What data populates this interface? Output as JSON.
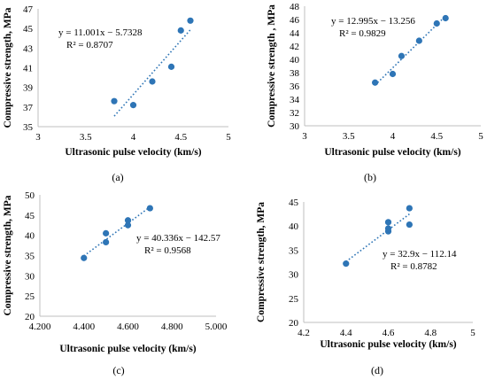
{
  "chart_data": [
    {
      "id": "a",
      "type": "scatter",
      "caption": "(a)",
      "xlabel": "Ultrasonic pulse velocity (km/s)",
      "ylabel": "Compressive strength, MPa",
      "xlim": [
        3,
        5
      ],
      "ylim": [
        35,
        47
      ],
      "xticks": [
        "3",
        "3.5",
        "4",
        "4.5",
        "5"
      ],
      "xtick_values": [
        3,
        3.5,
        4,
        4.5,
        5
      ],
      "yticks": [
        "35",
        "37",
        "39",
        "41",
        "43",
        "45",
        "47"
      ],
      "ytick_values": [
        35,
        37,
        39,
        41,
        43,
        45,
        47
      ],
      "points": [
        [
          3.8,
          37.6
        ],
        [
          4.0,
          37.2
        ],
        [
          4.2,
          39.6
        ],
        [
          4.4,
          41.1
        ],
        [
          4.5,
          44.8
        ],
        [
          4.6,
          45.8
        ]
      ],
      "trendline": {
        "slope": 11.001,
        "intercept": -5.7328,
        "x_range": [
          3.8,
          4.6
        ]
      },
      "equation": "y = 11.001x − 5.7328",
      "r2": "R² = 0.8707",
      "grid": false,
      "color": "#2e75b6"
    },
    {
      "id": "b",
      "type": "scatter",
      "caption": "(b)",
      "xlabel": "Ultrasonic pulse velocity (km/s)",
      "ylabel": "Compressive strength , MPa",
      "xlim": [
        3,
        5
      ],
      "ylim": [
        30,
        48
      ],
      "xticks": [
        "3",
        "3.5",
        "4",
        "4.5",
        "5"
      ],
      "xtick_values": [
        3,
        3.5,
        4,
        4.5,
        5
      ],
      "yticks": [
        "30",
        "32",
        "34",
        "36",
        "38",
        "40",
        "42",
        "44",
        "46",
        "48"
      ],
      "ytick_values": [
        30,
        32,
        34,
        36,
        38,
        40,
        42,
        44,
        46,
        48
      ],
      "points": [
        [
          3.8,
          36.5
        ],
        [
          4.0,
          37.8
        ],
        [
          4.1,
          40.5
        ],
        [
          4.3,
          42.8
        ],
        [
          4.5,
          45.4
        ],
        [
          4.6,
          46.2
        ]
      ],
      "trendline": {
        "slope": 12.995,
        "intercept": -13.256,
        "x_range": [
          3.8,
          4.6
        ]
      },
      "equation": "y = 12.995x − 13.256",
      "r2": "R² = 0.9829",
      "grid": false,
      "color": "#2e75b6"
    },
    {
      "id": "c",
      "type": "scatter",
      "caption": "(c)",
      "xlabel": "Ultrasonic pulse velocity (km/s)",
      "ylabel": "Compressive strength, MPa",
      "xlim": [
        4.2,
        5.0
      ],
      "ylim": [
        20,
        50
      ],
      "xticks": [
        "4.200",
        "4.400",
        "4.600",
        "4.800",
        "5.000"
      ],
      "xtick_values": [
        4.2,
        4.4,
        4.6,
        4.8,
        5.0
      ],
      "yticks": [
        "20",
        "25",
        "30",
        "35",
        "40",
        "45",
        "50"
      ],
      "ytick_values": [
        20,
        25,
        30,
        35,
        40,
        45,
        50
      ],
      "points": [
        [
          4.4,
          34.4
        ],
        [
          4.5,
          38.3
        ],
        [
          4.5,
          40.5
        ],
        [
          4.6,
          42.5
        ],
        [
          4.6,
          43.7
        ],
        [
          4.7,
          46.7
        ]
      ],
      "trendline": {
        "slope": 40.336,
        "intercept": -142.57,
        "x_range": [
          4.4,
          4.7
        ]
      },
      "equation": "y = 40.336x − 142.57",
      "r2": "R² = 0.9568",
      "grid": false,
      "color": "#2e75b6"
    },
    {
      "id": "d",
      "type": "scatter",
      "caption": "(d)",
      "xlabel": "Ultrasonic pulse velocity (km/s)",
      "ylabel": "Compressive strength, MPa",
      "xlim": [
        4.2,
        5.0
      ],
      "ylim": [
        20,
        45
      ],
      "xticks": [
        "4.2",
        "4.4",
        "4.6",
        "4.8",
        "5"
      ],
      "xtick_values": [
        4.2,
        4.4,
        4.6,
        4.8,
        5.0
      ],
      "yticks": [
        "20",
        "25",
        "30",
        "35",
        "40",
        "45"
      ],
      "ytick_values": [
        20,
        25,
        30,
        35,
        40,
        45
      ],
      "points": [
        [
          4.4,
          32.2
        ],
        [
          4.6,
          38.9
        ],
        [
          4.6,
          39.5
        ],
        [
          4.6,
          40.8
        ],
        [
          4.7,
          40.3
        ],
        [
          4.7,
          43.7
        ]
      ],
      "trendline": {
        "slope": 32.9,
        "intercept": -112.14,
        "x_range": [
          4.4,
          4.7
        ]
      },
      "equation": "y = 32.9x − 112.14",
      "r2": "R² = 0.8782",
      "grid": false,
      "color": "#2e75b6"
    }
  ]
}
